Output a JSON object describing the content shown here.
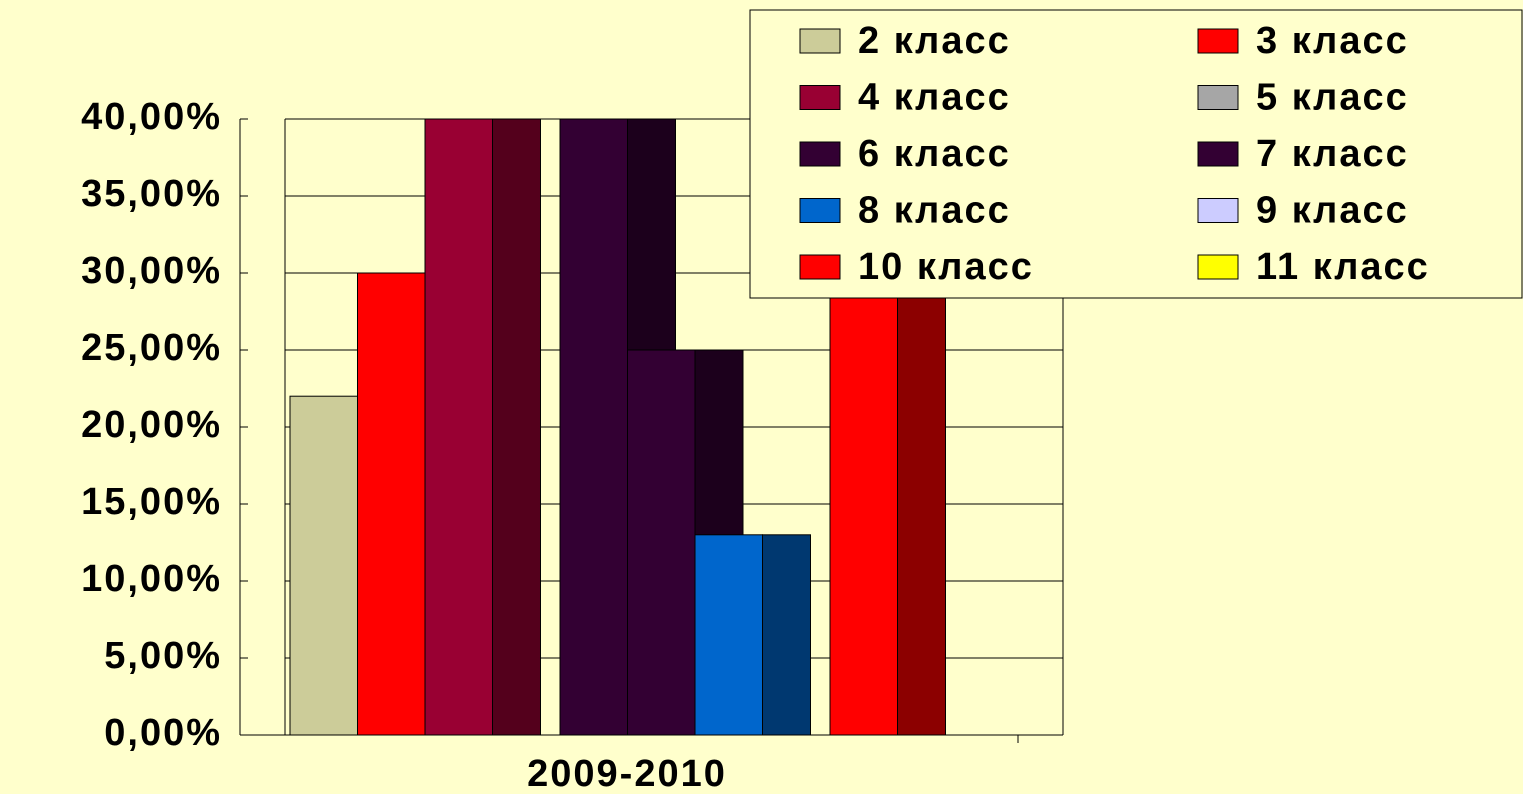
{
  "chart_data": {
    "type": "bar",
    "categories": [
      "2009-2010"
    ],
    "series": [
      {
        "name": "2 класс",
        "color": "#cccc99",
        "values": [
          22
        ]
      },
      {
        "name": "3 класс",
        "color": "#ff0000",
        "values": [
          30
        ]
      },
      {
        "name": "4 класс",
        "color": "#990033",
        "values": [
          40
        ]
      },
      {
        "name": "5 класс",
        "color": "#a6a6a6",
        "values": [
          0
        ]
      },
      {
        "name": "6 класс",
        "color": "#330033",
        "values": [
          40
        ]
      },
      {
        "name": "7 класс",
        "color": "#330033",
        "values": [
          25
        ]
      },
      {
        "name": "8 класс",
        "color": "#0066cc",
        "values": [
          13
        ]
      },
      {
        "name": "9 класс",
        "color": "#ccccff",
        "values": [
          0
        ]
      },
      {
        "name": "10 класс",
        "color": "#ff0000",
        "values": [
          29
        ]
      },
      {
        "name": "11 класс",
        "color": "#ffff00",
        "values": [
          0
        ]
      }
    ],
    "ylim": [
      0,
      40
    ],
    "yticks": [
      {
        "value": 0,
        "label": "0,00%"
      },
      {
        "value": 5,
        "label": "5,00%"
      },
      {
        "value": 10,
        "label": "10,00%"
      },
      {
        "value": 15,
        "label": "15,00%"
      },
      {
        "value": 20,
        "label": "20,00%"
      },
      {
        "value": 25,
        "label": "25,00%"
      },
      {
        "value": 30,
        "label": "30,00%"
      },
      {
        "value": 35,
        "label": "35,00%"
      },
      {
        "value": 40,
        "label": "40,00%"
      }
    ],
    "grid": true,
    "legend": "top-right"
  }
}
